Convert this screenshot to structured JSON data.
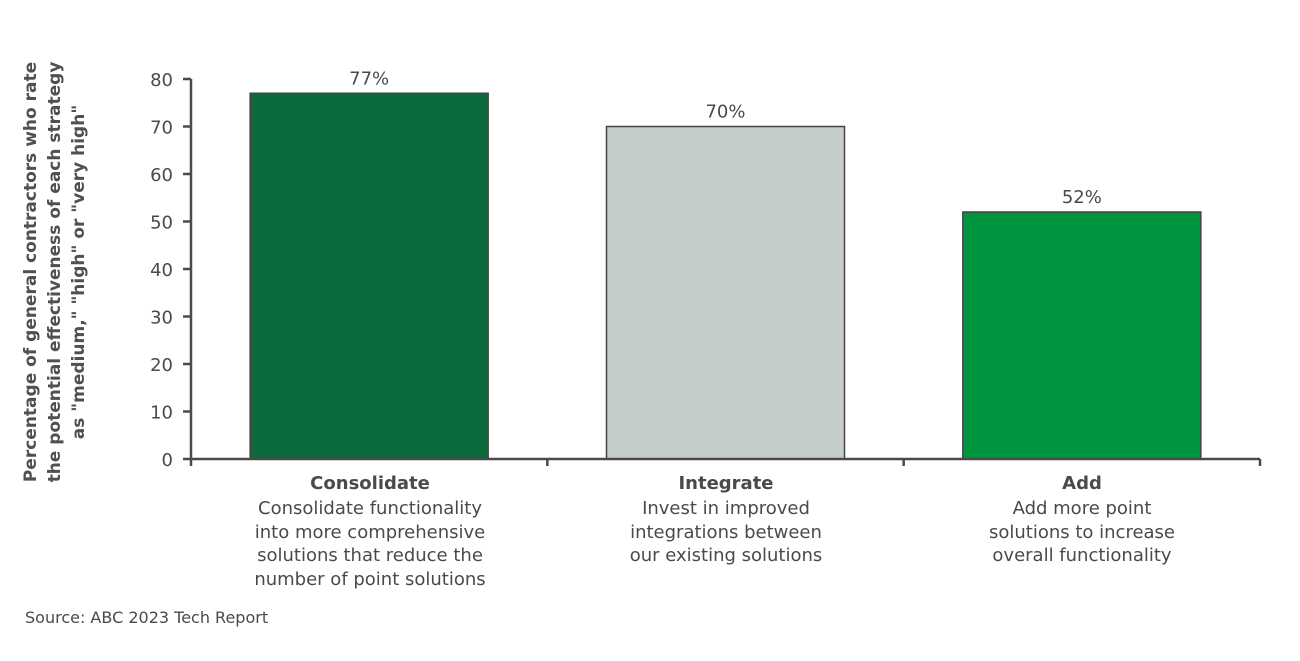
{
  "chart_data": {
    "type": "bar",
    "title": "",
    "categories": [
      "Consolidate",
      "Integrate",
      "Add"
    ],
    "category_descriptions": [
      "Consolidate functionality into more comprehensive solutions that reduce the number of point solutions",
      "Invest in improved integrations between our existing solutions",
      "Add more point solutions to increase overall functionality"
    ],
    "values": [
      77,
      70,
      52
    ],
    "value_labels": [
      "77%",
      "70%",
      "52%"
    ],
    "colors": [
      "#0b6b3c",
      "#c5cdcb",
      "#00963f"
    ],
    "xlabel": "",
    "ylabel": "Percentage of general contractors who rate the potential effectiveness of each strategy as \"medium,\" \"high\" or \"very high\"",
    "ylim": [
      0,
      80
    ],
    "yticks": [
      0,
      10,
      20,
      30,
      40,
      50,
      60,
      70,
      80
    ],
    "grid": false,
    "legend": "none"
  },
  "ylabel_lines": [
    "Percentage of general contractors who rate",
    "the potential effectiveness of each strategy",
    "as \"medium,\" \"high\" or \"very high\""
  ],
  "categories": [
    {
      "title": "Consolidate",
      "desc": [
        "Consolidate functionality",
        "into more comprehensive",
        "solutions that reduce the",
        "number of point solutions"
      ]
    },
    {
      "title": "Integrate",
      "desc": [
        "Invest in improved",
        "integrations between",
        "our existing solutions"
      ]
    },
    {
      "title": "Add",
      "desc": [
        "Add more point",
        "solutions to increase",
        "overall functionality"
      ]
    }
  ],
  "source": "Source: ABC 2023 Tech Report"
}
